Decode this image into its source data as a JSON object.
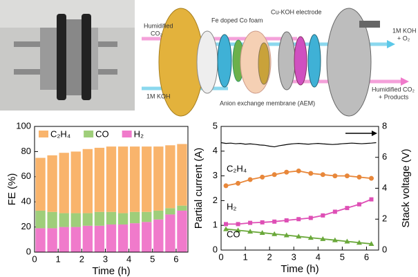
{
  "diagram": {
    "inlet_co2": [
      "Humidified",
      "CO₂"
    ],
    "foam": "Fe doped Co foam",
    "electrode": "Cu-KOH electrode",
    "outlet_koh": [
      "1M KOH",
      "+ O₂"
    ],
    "inlet_koh": "1M KOH",
    "outlet_co2": [
      "Humidified CO₂",
      "+ Products"
    ],
    "membrane": "Anion exchange membrane (AEM)"
  },
  "chart_data": [
    {
      "type": "bar",
      "stacked": true,
      "xlabel": "Time (h)",
      "ylabel": "FE (%)",
      "x": [
        0.25,
        0.75,
        1.25,
        1.75,
        2.25,
        2.75,
        3.25,
        3.75,
        4.25,
        4.75,
        5.25,
        5.75,
        6.25
      ],
      "series": [
        {
          "name": "H₂",
          "color": "#f07acb",
          "values": [
            19,
            19,
            20,
            20,
            21,
            21,
            22,
            22,
            23,
            24,
            26,
            30,
            33
          ]
        },
        {
          "name": "CO",
          "color": "#9fce7a",
          "values": [
            14,
            13,
            11,
            11,
            10,
            11,
            10,
            9,
            9,
            8,
            7,
            5,
            4
          ]
        },
        {
          "name": "C₂H₄",
          "color": "#f9b46c",
          "values": [
            42,
            45,
            48,
            49,
            51,
            51,
            52,
            53,
            52,
            52,
            51,
            50,
            49
          ]
        }
      ],
      "legend_order": [
        2,
        1,
        0
      ],
      "xlim": [
        0,
        6.5
      ],
      "xticks": [
        0,
        1,
        2,
        3,
        4,
        5,
        6
      ],
      "ylim": [
        0,
        100
      ],
      "yticks": [
        0,
        20,
        40,
        60,
        80,
        100
      ]
    },
    {
      "type": "line",
      "xlabel": "Time (h)",
      "ylabel": "Partial current (A)",
      "y2label": "Stack voltage (V)",
      "series": [
        {
          "name": "C₂H₄",
          "color": "#e8873a",
          "marker": "circle",
          "x": [
            0.2,
            0.7,
            1.2,
            1.7,
            2.2,
            2.7,
            3.2,
            3.7,
            4.2,
            4.7,
            5.2,
            5.7,
            6.2
          ],
          "values": [
            2.6,
            2.7,
            2.85,
            2.95,
            3.05,
            3.15,
            3.2,
            3.1,
            3.05,
            3.0,
            3.0,
            2.95,
            2.9
          ]
        },
        {
          "name": "H₂",
          "color": "#de4fb5",
          "marker": "square",
          "x": [
            0.2,
            0.7,
            1.2,
            1.7,
            2.2,
            2.7,
            3.2,
            3.7,
            4.2,
            4.7,
            5.2,
            5.7,
            6.2
          ],
          "values": [
            1.05,
            1.05,
            1.1,
            1.12,
            1.15,
            1.2,
            1.25,
            1.3,
            1.4,
            1.55,
            1.7,
            1.85,
            2.05
          ]
        },
        {
          "name": "CO",
          "color": "#6aa83a",
          "marker": "triangle",
          "x": [
            0.2,
            0.7,
            1.2,
            1.7,
            2.2,
            2.7,
            3.2,
            3.7,
            4.2,
            4.7,
            5.2,
            5.7,
            6.2
          ],
          "values": [
            0.85,
            0.8,
            0.75,
            0.7,
            0.65,
            0.6,
            0.55,
            0.5,
            0.45,
            0.4,
            0.35,
            0.3,
            0.25
          ]
        },
        {
          "color": "#000000",
          "axis": "y2",
          "x": [
            0,
            0.2,
            0.4,
            0.6,
            0.8,
            1.0,
            1.2,
            1.4,
            1.6,
            1.8,
            2.0,
            2.2,
            2.4,
            2.6,
            2.8,
            3.0,
            3.2,
            3.4,
            3.6,
            3.8,
            4.0,
            4.2,
            4.4,
            4.6,
            4.8,
            5.0,
            5.2,
            5.4,
            5.6,
            5.8,
            6.0,
            6.2,
            6.4
          ],
          "values": [
            6.95,
            6.9,
            6.92,
            6.88,
            6.9,
            6.85,
            6.87,
            6.84,
            6.8,
            6.78,
            6.72,
            6.68,
            6.75,
            6.8,
            6.85,
            6.88,
            6.9,
            6.87,
            6.85,
            6.88,
            6.9,
            6.87,
            6.85,
            6.83,
            6.85,
            6.88,
            6.9,
            6.92,
            6.9,
            6.88,
            6.9,
            6.92,
            6.95
          ]
        }
      ],
      "xlim": [
        0,
        6.5
      ],
      "xticks": [
        0,
        1,
        2,
        3,
        4,
        5,
        6
      ],
      "ylim": [
        0,
        5
      ],
      "yticks": [
        0,
        1,
        2,
        3,
        4,
        5
      ],
      "y2lim": [
        0,
        8
      ],
      "y2ticks": [
        0,
        2,
        4,
        6,
        8
      ]
    }
  ]
}
